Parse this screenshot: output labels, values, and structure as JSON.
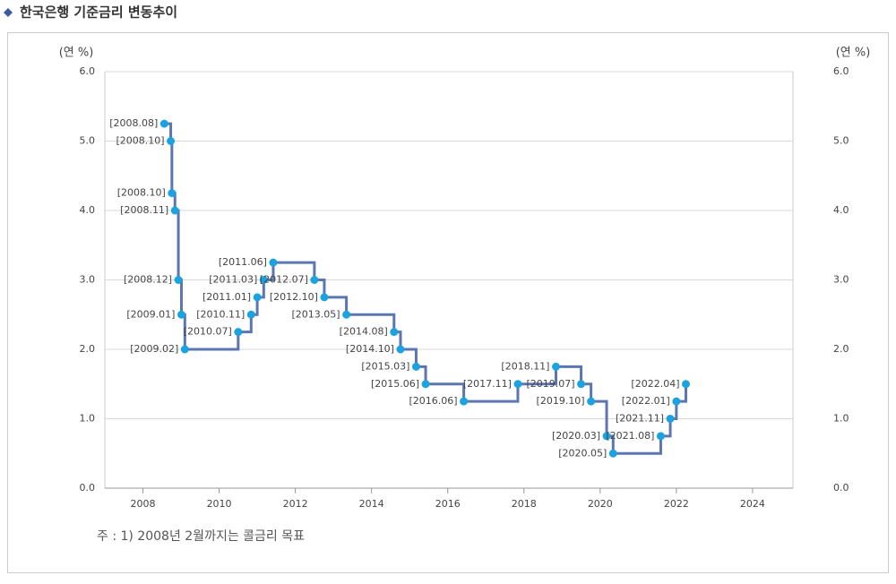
{
  "title": "한국은행 기준금리 변동추이",
  "chart_data": {
    "type": "step",
    "unit_left": "(연 %)",
    "unit_right": "(연 %)",
    "footnote": "주 : 1) 2008년 2월까지는 콜금리 목표",
    "x": [
      2008.56,
      2008.73,
      2008.76,
      2008.84,
      2008.93,
      2009.01,
      2009.1,
      2010.5,
      2010.84,
      2011.0,
      2011.17,
      2011.42,
      2012.5,
      2012.76,
      2013.34,
      2014.59,
      2014.76,
      2015.17,
      2015.42,
      2016.42,
      2017.84,
      2018.84,
      2019.5,
      2019.76,
      2020.17,
      2020.34,
      2021.59,
      2021.84,
      2022.0,
      2022.25
    ],
    "values": [
      5.25,
      5.0,
      4.25,
      4.0,
      3.0,
      2.5,
      2.0,
      2.25,
      2.5,
      2.75,
      3.0,
      3.25,
      3.0,
      2.75,
      2.5,
      2.25,
      2.0,
      1.75,
      1.5,
      1.25,
      1.5,
      1.75,
      1.5,
      1.25,
      0.75,
      0.5,
      0.75,
      1.0,
      1.25,
      1.5
    ],
    "point_labels": [
      "[2008.08]",
      "[2008.10]",
      "[2008.10]",
      "[2008.11]",
      "[2008.12]",
      "[2009.01]",
      "[2009.02]",
      "[2010.07]",
      "[2010.11]",
      "[2011.01]",
      "[2011.03]",
      "[2011.06]",
      "[2012.07]",
      "[2012.10]",
      "[2013.05]",
      "[2014.08]",
      "[2014.10]",
      "[2015.03]",
      "[2015.06]",
      "[2016.06]",
      "[2017.11]",
      "[2018.11]",
      "[2019.07]",
      "[2019.10]",
      "[2020.03]",
      "[2020.05]",
      "[2021.08]",
      "[2021.11]",
      "[2022.01]",
      "[2022.04]"
    ],
    "color": "#5b76b0",
    "marker_color": "#1ba3e0",
    "xlim": [
      2007,
      2025.06
    ],
    "xticks": [
      2008,
      2010,
      2012,
      2014,
      2016,
      2018,
      2020,
      2022,
      2024
    ],
    "ylim": [
      0,
      6
    ],
    "yticks": [
      {
        "value": 0,
        "label": "0.0"
      },
      {
        "value": 1,
        "label": "1.0"
      },
      {
        "value": 2,
        "label": "2.0"
      },
      {
        "value": 3,
        "label": "3.0"
      },
      {
        "value": 4,
        "label": "4.0"
      },
      {
        "value": 5,
        "label": "5.0"
      },
      {
        "value": 6,
        "label": "6.0"
      }
    ],
    "y2lim": [
      0,
      6
    ],
    "y2ticks": [
      {
        "value": 0,
        "label": "0.0"
      },
      {
        "value": 1,
        "label": "1.0"
      },
      {
        "value": 2,
        "label": "2.0"
      },
      {
        "value": 3,
        "label": "3.0"
      },
      {
        "value": 4,
        "label": "4.0"
      },
      {
        "value": 5,
        "label": "5.0"
      },
      {
        "value": 6,
        "label": "6.0"
      }
    ],
    "grid": true
  }
}
